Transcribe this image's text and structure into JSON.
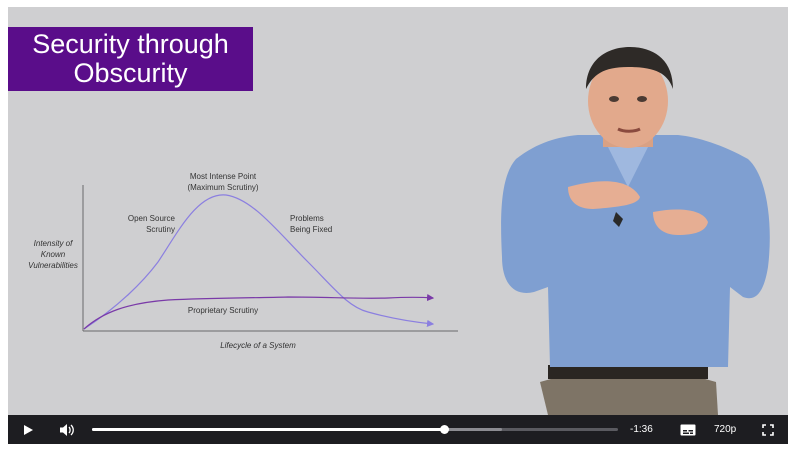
{
  "slide": {
    "title_line1": "Security through",
    "title_line2": "Obscurity",
    "diagram": {
      "y_axis_label": [
        "Intensity of",
        "Known",
        "Vulnerabilities"
      ],
      "x_axis_label": "Lifecycle of a System",
      "peak_label": [
        "Most Intense Point",
        "(Maximum Scrutiny)"
      ],
      "open_source_label": [
        "Open Source",
        "Scrutiny"
      ],
      "problems_label": [
        "Problems",
        "Being Fixed"
      ],
      "proprietary_label": "Proprietary Scrutiny",
      "curve_color": "#8b7fe0",
      "proprietary_color": "#7a3aa8"
    }
  },
  "player": {
    "time_remaining": "-1:36",
    "quality": "720p",
    "progress": 0.67,
    "buffered": 0.78,
    "icons": {
      "play": "play-icon",
      "volume": "volume-icon",
      "captions": "captions-icon",
      "fullscreen": "fullscreen-icon"
    }
  }
}
